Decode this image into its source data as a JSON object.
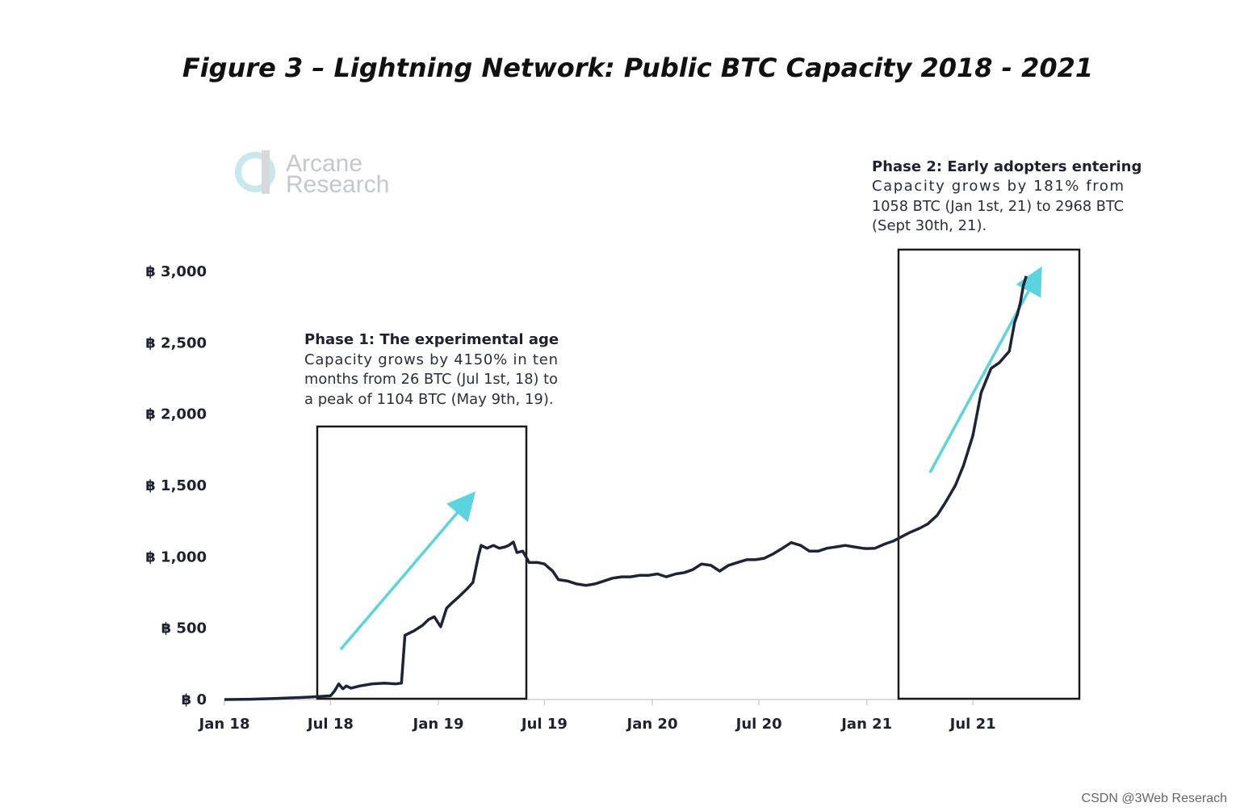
{
  "title": "Figure 3 – Lightning Network: Public BTC Capacity 2018 - 2021",
  "logo": {
    "line1": "Arcane",
    "line2": "Research"
  },
  "credit": "CSDN @3Web Reserach",
  "colors": {
    "line": "#1e2437",
    "arrow": "#5ad4de",
    "box": "#1a1a1a",
    "axis": "#d0d0d0"
  },
  "annotations": {
    "phase1": {
      "heading": "Phase 1: The experimental age",
      "lines": [
        "Capacity grows by 4150% in ten",
        "months from 26 BTC (Jul 1st, 18) to",
        "a peak of 1104 BTC (May 9th, 19)."
      ]
    },
    "phase2": {
      "heading": "Phase 2: Early adopters entering",
      "lines": [
        "Capacity grows by 181% from",
        "1058 BTC (Jan 1st, 21) to 2968 BTC",
        "(Sept 30th, 21)."
      ]
    }
  },
  "chart_data": {
    "type": "line",
    "y_tick_labels": [
      "฿ 0",
      "฿ 500",
      "฿ 1,000",
      "฿ 1,500",
      "฿ 2,000",
      "฿ 2,500",
      "฿ 3,000"
    ],
    "y_ticks": [
      0,
      500,
      1000,
      1500,
      2000,
      2500,
      3000
    ],
    "ylim": [
      0,
      3000
    ],
    "x_tick_labels": [
      "Jan 18",
      "Jul 18",
      "Jan 19",
      "Jul 19",
      "Jan 20",
      "Jul 20",
      "Jan 21",
      "Jul 21"
    ],
    "x_ticks": [
      "2018-01-01",
      "2018-07-01",
      "2019-01-01",
      "2019-07-01",
      "2020-01-01",
      "2020-07-01",
      "2021-01-01",
      "2021-07-01"
    ],
    "xlim": [
      "2018-01-01",
      "2021-12-31"
    ],
    "grid": false,
    "series": [
      {
        "x": [
          "2018-01-01",
          "2018-02-15",
          "2018-04-01",
          "2018-05-15",
          "2018-06-15",
          "2018-06-25",
          "2018-07-01",
          "2018-07-08",
          "2018-07-15",
          "2018-07-22",
          "2018-07-28",
          "2018-08-05",
          "2018-08-20",
          "2018-09-10",
          "2018-10-01",
          "2018-10-20",
          "2018-10-30",
          "2018-11-05",
          "2018-11-10",
          "2018-11-20",
          "2018-12-05",
          "2018-12-15",
          "2018-12-25",
          "2019-01-05",
          "2019-01-15",
          "2019-01-25",
          "2019-02-05",
          "2019-02-20",
          "2019-03-01",
          "2019-03-10",
          "2019-03-15",
          "2019-03-20",
          "2019-03-25",
          "2019-04-05",
          "2019-04-15",
          "2019-04-25",
          "2019-05-01",
          "2019-05-09",
          "2019-05-15",
          "2019-05-25",
          "2019-06-05",
          "2019-06-20",
          "2019-07-01",
          "2019-07-15",
          "2019-07-25",
          "2019-08-10",
          "2019-08-25",
          "2019-09-10",
          "2019-09-25",
          "2019-10-10",
          "2019-10-25",
          "2019-11-10",
          "2019-11-25",
          "2019-12-10",
          "2019-12-25",
          "2020-01-10",
          "2020-01-25",
          "2020-02-10",
          "2020-02-25",
          "2020-03-10",
          "2020-03-25",
          "2020-04-10",
          "2020-04-25",
          "2020-05-10",
          "2020-05-25",
          "2020-06-10",
          "2020-06-25",
          "2020-07-10",
          "2020-07-25",
          "2020-08-10",
          "2020-08-25",
          "2020-09-10",
          "2020-09-25",
          "2020-10-10",
          "2020-10-25",
          "2020-11-10",
          "2020-11-25",
          "2020-12-10",
          "2020-12-25",
          "2021-01-01",
          "2021-01-15",
          "2021-02-01",
          "2021-02-15",
          "2021-03-01",
          "2021-03-15",
          "2021-04-01",
          "2021-04-15",
          "2021-05-01",
          "2021-05-15",
          "2021-06-01",
          "2021-06-15",
          "2021-07-01",
          "2021-07-15",
          "2021-08-01",
          "2021-08-15",
          "2021-09-01",
          "2021-09-10",
          "2021-09-15",
          "2021-09-20",
          "2021-09-25",
          "2021-09-30"
        ],
        "values": [
          0,
          2,
          8,
          15,
          22,
          25,
          26,
          60,
          110,
          75,
          95,
          80,
          95,
          110,
          115,
          110,
          115,
          450,
          460,
          480,
          520,
          560,
          580,
          510,
          640,
          680,
          720,
          780,
          820,
          1000,
          1080,
          1070,
          1060,
          1080,
          1060,
          1070,
          1080,
          1104,
          1030,
          1040,
          960,
          960,
          950,
          900,
          840,
          830,
          810,
          800,
          810,
          830,
          850,
          860,
          860,
          870,
          870,
          880,
          860,
          880,
          890,
          910,
          950,
          940,
          900,
          940,
          960,
          980,
          980,
          990,
          1020,
          1060,
          1100,
          1080,
          1040,
          1040,
          1060,
          1070,
          1080,
          1070,
          1060,
          1058,
          1060,
          1090,
          1110,
          1140,
          1170,
          1200,
          1230,
          1290,
          1380,
          1500,
          1640,
          1850,
          2150,
          2320,
          2360,
          2440,
          2640,
          2700,
          2780,
          2900,
          2968
        ]
      }
    ]
  }
}
